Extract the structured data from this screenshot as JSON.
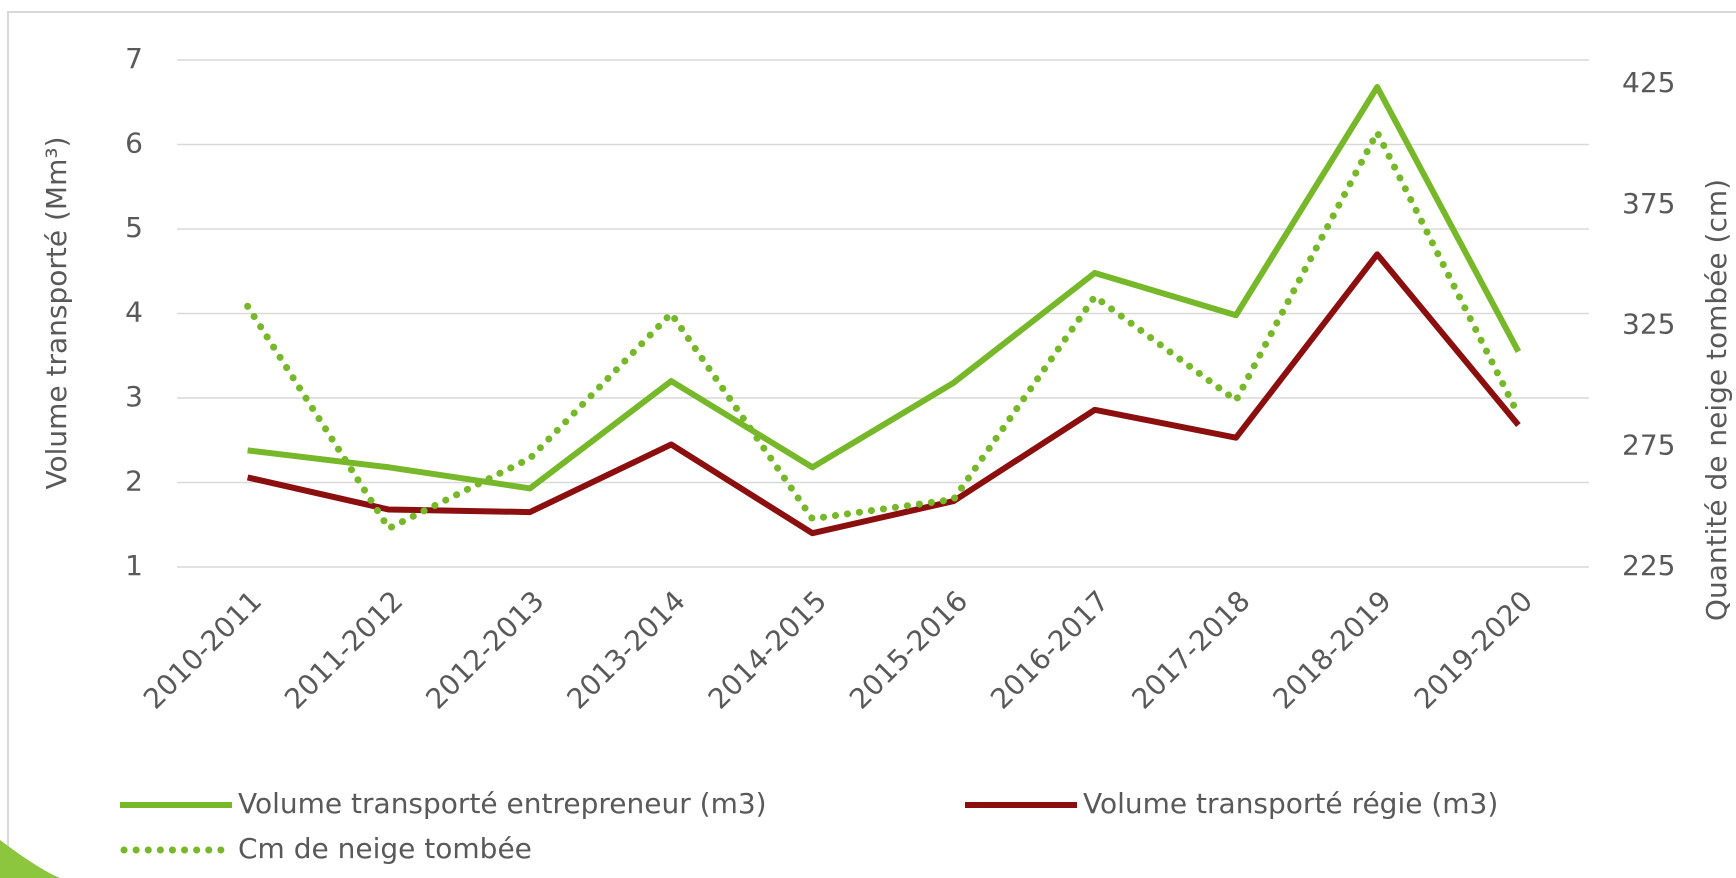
{
  "chart_data": {
    "type": "line",
    "categories": [
      "2010-2011",
      "2011-2012",
      "2012-2013",
      "2013-2014",
      "2014-2015",
      "2015-2016",
      "2016-2017",
      "2017-2018",
      "2018-2019",
      "2019-2020"
    ],
    "ylabel": "Volume transporté (Mm³)",
    "y2label": "Quantité de neige tombée (cm)",
    "ylim": [
      1,
      7
    ],
    "yticks": [
      1,
      2,
      3,
      4,
      5,
      6,
      7
    ],
    "y2lim": [
      225,
      435
    ],
    "y2ticks": [
      225,
      275,
      325,
      375,
      425
    ],
    "grid": true,
    "legend": "bottom",
    "series": [
      {
        "name": "Volume transporté entrepreneur (m3)",
        "color": "#76b82a",
        "style": "solid",
        "values": [
          2.38,
          2.18,
          1.93,
          3.2,
          2.18,
          3.18,
          4.48,
          3.98,
          6.68,
          3.55
        ]
      },
      {
        "name": "Volume transporté régie (m3)",
        "color": "#8b0f0f",
        "style": "solid",
        "values": [
          2.06,
          1.68,
          1.65,
          2.45,
          1.4,
          1.78,
          2.86,
          2.53,
          4.7,
          2.68
        ]
      },
      {
        "name": "Cm de neige tombée",
        "color": "#76b82a",
        "style": "dotted",
        "axis": "y2",
        "values": [
          333,
          241,
          270,
          330,
          245,
          253,
          337,
          294,
          405,
          288
        ]
      }
    ]
  }
}
